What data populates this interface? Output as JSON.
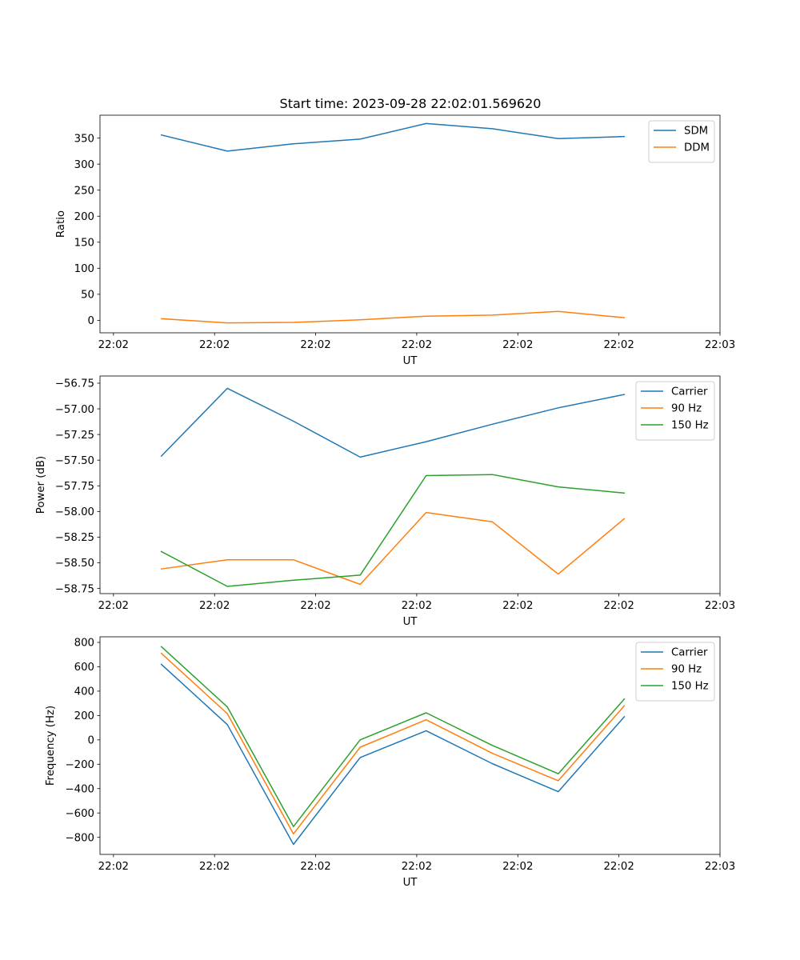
{
  "figure_title": "Start time: 2023-09-28 22:02:01.569620",
  "colors": {
    "blue": "#1f77b4",
    "orange": "#ff7f0e",
    "green": "#2ca02c"
  },
  "chart_data": [
    {
      "type": "line",
      "xlabel": "UT",
      "ylabel": "Ratio",
      "xlim": [
        0,
        9.2
      ],
      "ylim": [
        -24,
        394
      ],
      "xticks": [
        0.2,
        1.7,
        3.2,
        4.7,
        6.2,
        7.7,
        9.2
      ],
      "x_tick_labels": [
        "22:02",
        "22:02",
        "22:02",
        "22:02",
        "22:02",
        "22:02",
        "22:03"
      ],
      "yticks": [
        0,
        50,
        100,
        150,
        200,
        250,
        300,
        350
      ],
      "y_tick_labels": [
        "0",
        "50",
        "100",
        "150",
        "200",
        "250",
        "300",
        "350"
      ],
      "legend_position": "top-right",
      "x": [
        0.91,
        1.89,
        2.87,
        3.86,
        4.84,
        5.82,
        6.8,
        7.78
      ],
      "series": [
        {
          "name": "SDM",
          "color": "#1f77b4",
          "values": [
            356,
            325,
            339,
            348,
            378,
            368,
            349,
            353
          ]
        },
        {
          "name": "DDM",
          "color": "#ff7f0e",
          "values": [
            3,
            -5,
            -4,
            1,
            8,
            10,
            17,
            5
          ]
        }
      ]
    },
    {
      "type": "line",
      "xlabel": "UT",
      "ylabel": "Power (dB)",
      "xlim": [
        0,
        9.2
      ],
      "ylim": [
        -58.8,
        -56.68
      ],
      "xticks": [
        0.2,
        1.7,
        3.2,
        4.7,
        6.2,
        7.7,
        9.2
      ],
      "x_tick_labels": [
        "22:02",
        "22:02",
        "22:02",
        "22:02",
        "22:02",
        "22:02",
        "22:03"
      ],
      "yticks": [
        -58.75,
        -58.5,
        -58.25,
        -58.0,
        -57.75,
        -57.5,
        -57.25,
        -57.0,
        -56.75
      ],
      "y_tick_labels": [
        "−58.75",
        "−58.50",
        "−58.25",
        "−58.00",
        "−57.75",
        "−57.50",
        "−57.25",
        "−57.00",
        "−56.75"
      ],
      "legend_position": "top-right",
      "x": [
        0.91,
        1.89,
        2.87,
        3.86,
        4.84,
        5.82,
        6.8,
        7.78
      ],
      "series": [
        {
          "name": "Carrier",
          "color": "#1f77b4",
          "values": [
            -57.46,
            -56.8,
            -57.12,
            -57.47,
            -57.32,
            -57.15,
            -56.99,
            -56.86
          ]
        },
        {
          "name": "90 Hz",
          "color": "#ff7f0e",
          "values": [
            -58.56,
            -58.47,
            -58.47,
            -58.71,
            -58.01,
            -58.1,
            -58.61,
            -58.07
          ]
        },
        {
          "name": "150 Hz",
          "color": "#2ca02c",
          "values": [
            -58.39,
            -58.73,
            -58.67,
            -58.62,
            -57.65,
            -57.64,
            -57.76,
            -57.82
          ]
        }
      ]
    },
    {
      "type": "line",
      "xlabel": "UT",
      "ylabel": "Frequency (Hz)",
      "xlim": [
        0,
        9.2
      ],
      "ylim": [
        -940,
        846
      ],
      "xticks": [
        0.2,
        1.7,
        3.2,
        4.7,
        6.2,
        7.7,
        9.2
      ],
      "x_tick_labels": [
        "22:02",
        "22:02",
        "22:02",
        "22:02",
        "22:02",
        "22:02",
        "22:03"
      ],
      "yticks": [
        -800,
        -600,
        -400,
        -200,
        0,
        200,
        400,
        600,
        800
      ],
      "y_tick_labels": [
        "−800",
        "−600",
        "−400",
        "−200",
        "0",
        "200",
        "400",
        "600",
        "800"
      ],
      "legend_position": "top-right",
      "x": [
        0.91,
        1.89,
        2.87,
        3.86,
        4.84,
        5.82,
        6.8,
        7.78
      ],
      "series": [
        {
          "name": "Carrier",
          "color": "#1f77b4",
          "values": [
            620,
            125,
            -858,
            -145,
            75,
            -195,
            -425,
            190
          ]
        },
        {
          "name": "90 Hz",
          "color": "#ff7f0e",
          "values": [
            710,
            215,
            -772,
            -60,
            165,
            -110,
            -335,
            280
          ]
        },
        {
          "name": "150 Hz",
          "color": "#2ca02c",
          "values": [
            765,
            270,
            -712,
            0,
            222,
            -45,
            -278,
            335
          ]
        }
      ]
    }
  ]
}
